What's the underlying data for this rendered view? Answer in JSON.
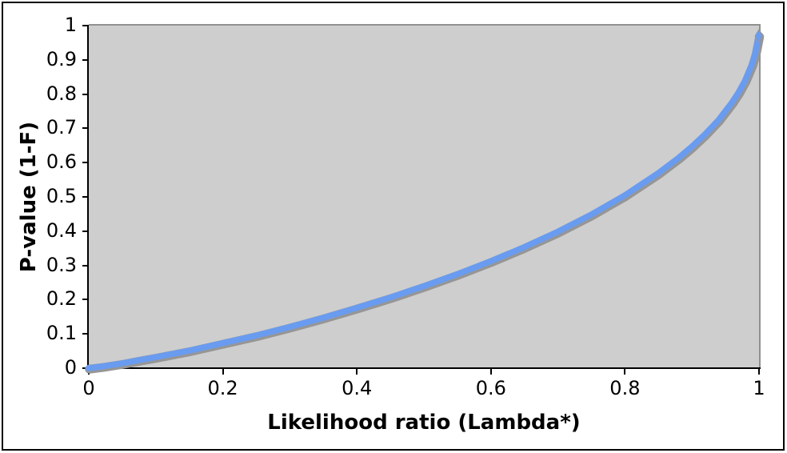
{
  "window": {
    "background": "#ffffff",
    "border_color": "#000000"
  },
  "chart_data": {
    "type": "line",
    "title": "",
    "xlabel": "Likelihood ratio (Lambda*)",
    "ylabel": "P-value (1-F)",
    "xlim": [
      0,
      1
    ],
    "ylim": [
      0,
      1
    ],
    "grid": false,
    "legend_position": "none",
    "plot_background": "#cecece",
    "plot_border_color": "#909090",
    "axis_color": "#000000",
    "x_ticks": [
      {
        "value": 0,
        "label": "0"
      },
      {
        "value": 0.2,
        "label": "0.2"
      },
      {
        "value": 0.4,
        "label": "0.4"
      },
      {
        "value": 0.6,
        "label": "0.6"
      },
      {
        "value": 0.8,
        "label": "0.8"
      },
      {
        "value": 1,
        "label": "1"
      }
    ],
    "y_ticks": [
      {
        "value": 0,
        "label": "0"
      },
      {
        "value": 0.1,
        "label": "0.1"
      },
      {
        "value": 0.2,
        "label": "0.2"
      },
      {
        "value": 0.3,
        "label": "0.3"
      },
      {
        "value": 0.4,
        "label": "0.4"
      },
      {
        "value": 0.5,
        "label": "0.5"
      },
      {
        "value": 0.6,
        "label": "0.6"
      },
      {
        "value": 0.7,
        "label": "0.7"
      },
      {
        "value": 0.8,
        "label": "0.8"
      },
      {
        "value": 0.9,
        "label": "0.9"
      },
      {
        "value": 1,
        "label": "1"
      }
    ],
    "series": [
      {
        "name": "P-value (1-F) vs Likelihood ratio",
        "color": "#699cf0",
        "outline_color": "#969696",
        "line_width": 7.5,
        "points": [
          [
            0,
            0
          ],
          [
            0.02,
            0.005
          ],
          [
            0.05,
            0.014
          ],
          [
            0.08,
            0.025
          ],
          [
            0.1,
            0.032
          ],
          [
            0.15,
            0.051
          ],
          [
            0.2,
            0.073
          ],
          [
            0.25,
            0.095
          ],
          [
            0.3,
            0.12
          ],
          [
            0.35,
            0.147
          ],
          [
            0.4,
            0.176
          ],
          [
            0.45,
            0.206
          ],
          [
            0.5,
            0.239
          ],
          [
            0.55,
            0.274
          ],
          [
            0.6,
            0.312
          ],
          [
            0.65,
            0.353
          ],
          [
            0.7,
            0.398
          ],
          [
            0.75,
            0.448
          ],
          [
            0.8,
            0.504
          ],
          [
            0.85,
            0.569
          ],
          [
            0.88,
            0.613
          ],
          [
            0.9,
            0.646
          ],
          [
            0.92,
            0.683
          ],
          [
            0.94,
            0.724
          ],
          [
            0.96,
            0.775
          ],
          [
            0.97,
            0.805
          ],
          [
            0.98,
            0.84
          ],
          [
            0.99,
            0.887
          ],
          [
            0.995,
            0.92
          ],
          [
            0.998,
            0.95
          ],
          [
            1.0,
            0.97
          ]
        ]
      }
    ]
  }
}
